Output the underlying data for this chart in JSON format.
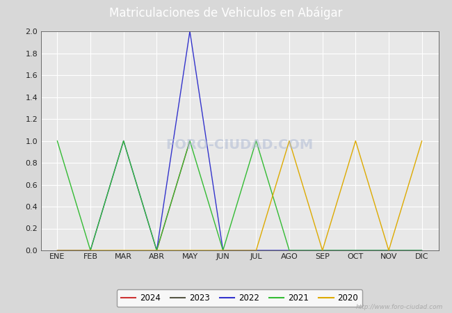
{
  "title": "Matriculaciones de Vehiculos en Abáigar",
  "title_bg": "#4169b0",
  "title_color": "white",
  "months": [
    "ENE",
    "FEB",
    "MAR",
    "ABR",
    "MAY",
    "JUN",
    "JUL",
    "AGO",
    "SEP",
    "OCT",
    "NOV",
    "DIC"
  ],
  "series": {
    "2024": {
      "color": "#cc3333",
      "data": [
        null,
        null,
        null,
        0,
        1,
        null,
        null,
        null,
        null,
        null,
        null,
        null
      ]
    },
    "2023": {
      "color": "#555544",
      "data": [
        0,
        0,
        0,
        0,
        0,
        0,
        0,
        0,
        0,
        0,
        0,
        0
      ]
    },
    "2022": {
      "color": "#3333cc",
      "data": [
        0,
        0,
        1,
        0,
        2,
        0,
        0,
        0,
        0,
        0,
        0,
        0
      ]
    },
    "2021": {
      "color": "#33bb33",
      "data": [
        1,
        0,
        1,
        0,
        1,
        0,
        1,
        0,
        0,
        0,
        0,
        0
      ]
    },
    "2020": {
      "color": "#ddaa00",
      "data": [
        0,
        0,
        0,
        0,
        0,
        0,
        0,
        1,
        0,
        1,
        0,
        1
      ]
    }
  },
  "ylim": [
    0,
    2.0
  ],
  "yticks": [
    0.0,
    0.2,
    0.4,
    0.6,
    0.8,
    1.0,
    1.2,
    1.4,
    1.6,
    1.8,
    2.0
  ],
  "outer_bg": "#d8d8d8",
  "plot_bg": "#e8e8e8",
  "grid_color": "#ffffff",
  "watermark_plot": "FORO-CIUDAD.COM",
  "watermark_url": "http://www.foro-ciudad.com",
  "legend_order": [
    "2024",
    "2023",
    "2022",
    "2021",
    "2020"
  ]
}
